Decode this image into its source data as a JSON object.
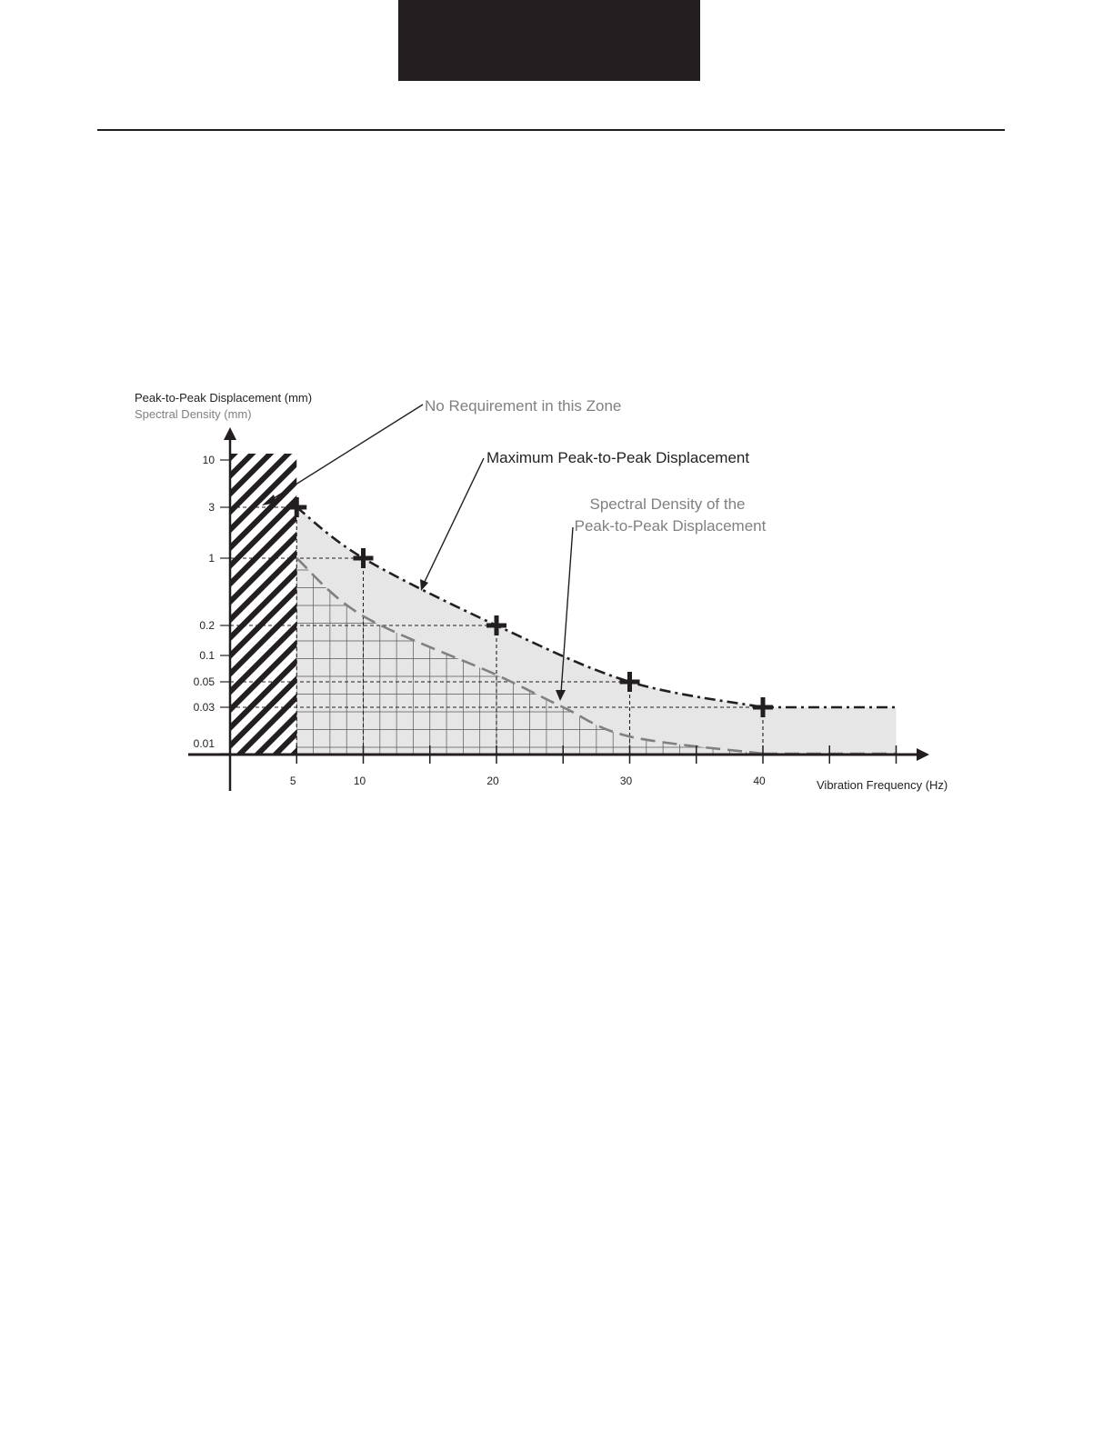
{
  "header": {
    "title_block_color": "#231f20"
  },
  "chart_data": {
    "type": "line",
    "ylabel": "Peak-to-Peak Displacement (mm)",
    "ylabel_secondary": "Spectral Density (mm)",
    "xlabel": "Vibration Frequency (Hz)",
    "x_ticks": [
      5,
      10,
      20,
      30,
      40
    ],
    "y_ticks": [
      10,
      3,
      1,
      0.2,
      0.1,
      0.05,
      0.03,
      0.01
    ],
    "y_scale": "nonlinear",
    "grid": "dashed reference lines at data points",
    "annotations": {
      "no_requirement": "No Requirement in this Zone",
      "max_peak": "Maximum Peak-to-Peak Displacement",
      "spectral_line1": "Spectral Density of the",
      "spectral_line2": "Peak-to-Peak Displacement"
    },
    "series": [
      {
        "name": "Maximum Peak-to-Peak Displacement",
        "style": "dash-dot",
        "color": "#231f20",
        "x": [
          5,
          10,
          20,
          30,
          40,
          50
        ],
        "y": [
          3,
          1,
          0.2,
          0.05,
          0.03,
          0.03
        ]
      },
      {
        "name": "Spectral Density of the Peak-to-Peak Displacement",
        "style": "dashed",
        "color": "#808080",
        "x": [
          5,
          10,
          20,
          25,
          30,
          40,
          50
        ],
        "y": [
          1,
          0.25,
          0.06,
          0.03,
          0.015,
          0.01,
          0.01
        ]
      }
    ],
    "markers": {
      "x": [
        5,
        10,
        20,
        30,
        40
      ],
      "y": [
        3,
        1,
        0.2,
        0.05,
        0.03
      ]
    },
    "no_requirement_zone": {
      "x_from": 0,
      "x_to": 5
    },
    "colors": {
      "axis": "#231f20",
      "fill": "#e6e6e6",
      "grid": "#6f6f6f",
      "spectral": "#808080"
    }
  }
}
